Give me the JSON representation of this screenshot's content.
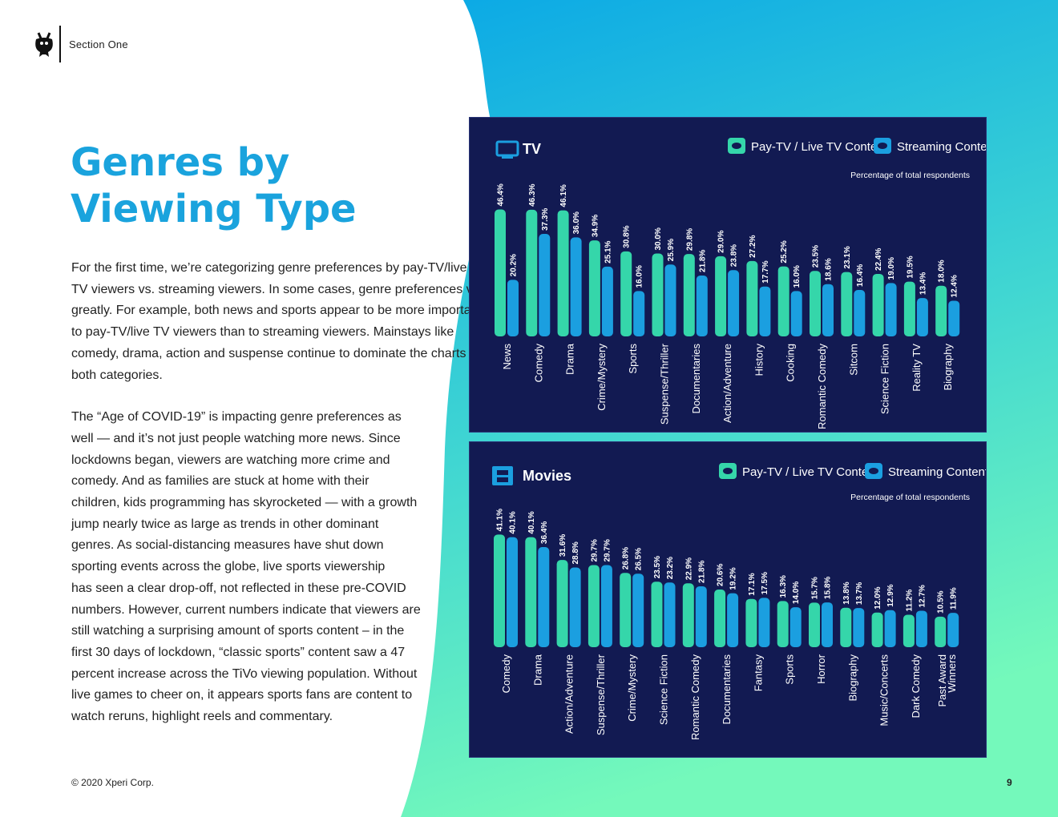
{
  "header": {
    "section": "Section One"
  },
  "title": {
    "line1": "Genres by",
    "line2": "Viewing Type"
  },
  "body": {
    "p1_lines": [
      "For the first time, we’re categorizing genre preferences by pay-TV/live",
      "TV viewers vs. streaming viewers. In some cases, genre preferences vary",
      "greatly. For example, both news and sports appear to be more important",
      "to pay-TV/live TV viewers than to streaming viewers. Mainstays like",
      "comedy, drama, action and suspense continue to dominate the charts in",
      "both categories."
    ],
    "p2_lines": [
      "The “Age of COVID-19” is impacting genre preferences as",
      "well — and it’s not just people watching more news. Since",
      "lockdowns began, viewers are watching more crime and",
      "comedy. And as families are stuck at home with their",
      "children, kids programming has skyrocketed — with a growth",
      "jump nearly twice as large as trends in other dominant",
      "genres. As social-distancing measures have shut down",
      "sporting events across the globe, live sports viewership",
      "has seen a clear drop-off, not reflected in these pre-COVID",
      "numbers. However, current numbers indicate that viewers are",
      "still watching a surprising amount of sports content – in the",
      "first 30 days of lockdown, “classic sports” content saw a 47",
      "percent increase across the TiVo viewing population. Without",
      "live games to cheer on, it appears sports fans are content to",
      "watch reruns, highlight reels and commentary."
    ]
  },
  "footer": {
    "copyright": "© 2020 Xperi Corp.",
    "page": "9"
  },
  "colors": {
    "pay": "#35d6aa",
    "stream": "#1b9fe0",
    "panel": "#121a52",
    "title": "#1aa3dd"
  },
  "chart_data": [
    {
      "type": "bar",
      "title": "TV",
      "subtitle": "Percentage of total respondents",
      "categories": [
        "News",
        "Comedy",
        "Drama",
        "Crime/Mystery",
        "Sports",
        "Suspense/Thriller",
        "Documentaries",
        "Action/Adventure",
        "History",
        "Cooking",
        "Romantic Comedy",
        "Sitcom",
        "Science Fiction",
        "Reality TV",
        "Biography"
      ],
      "series": [
        {
          "name": "Pay-TV / Live TV Content",
          "values": [
            46.4,
            46.3,
            46.1,
            34.9,
            30.8,
            30.0,
            29.8,
            29.0,
            27.2,
            25.2,
            23.5,
            23.1,
            22.4,
            19.5,
            18.0
          ]
        },
        {
          "name": "Streaming Content",
          "values": [
            20.2,
            37.3,
            36.0,
            25.1,
            16.0,
            25.9,
            21.8,
            23.8,
            17.7,
            16.0,
            18.6,
            16.4,
            19.0,
            13.4,
            12.4
          ]
        }
      ],
      "ylim": [
        0,
        50
      ]
    },
    {
      "type": "bar",
      "title": "Movies",
      "subtitle": "Percentage of total respondents",
      "categories": [
        "Comedy",
        "Drama",
        "Action/Adventure",
        "Suspense/Thriller",
        "Crime/Mystery",
        "Science Fiction",
        "Romantic Comedy",
        "Documentaries",
        "Fantasy",
        "Sports",
        "Horror",
        "Biography",
        "Music/Concerts",
        "Dark Comedy",
        "Past Award Winners"
      ],
      "series": [
        {
          "name": "Pay-TV / Live TV Content",
          "values": [
            41.1,
            40.1,
            31.6,
            29.7,
            26.8,
            23.5,
            22.9,
            20.6,
            17.1,
            16.3,
            15.7,
            13.8,
            12.0,
            11.2,
            10.5
          ]
        },
        {
          "name": "Streaming Content",
          "values": [
            40.1,
            36.4,
            28.8,
            29.7,
            26.5,
            23.2,
            21.8,
            19.2,
            17.5,
            14.0,
            15.8,
            13.7,
            12.9,
            12.7,
            11.9
          ]
        }
      ],
      "ylim": [
        0,
        45
      ]
    }
  ]
}
